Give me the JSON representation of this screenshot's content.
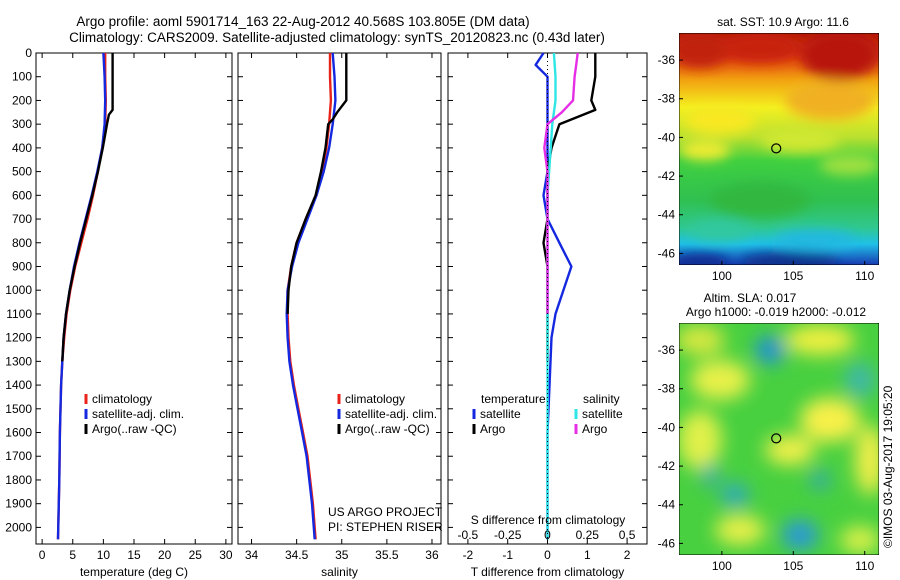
{
  "title_line1": "Argo profile: aoml 5901714_163 22-Aug-2012 40.568S 103.805E (DM data)",
  "title_line2": "Climatology: CARS2009. Satellite-adjusted climatology: synTS_20120823.nc (0.43d later)",
  "colors": {
    "climatology": "#e8231a",
    "satellite": "#1428e0",
    "argo": "#000000",
    "satellite_salinity": "#2ee6e6",
    "argo_salinity": "#e62ee6"
  },
  "chart_data": [
    {
      "type": "line",
      "name": "temperature",
      "xlabel": "temperature (deg C)",
      "ylabel": "",
      "xlim": [
        -1,
        31
      ],
      "ylim": [
        2070,
        0
      ],
      "xticks": [
        "0",
        "5",
        "10",
        "15",
        "20",
        "25",
        "30"
      ],
      "xtick_values": [
        0,
        5,
        10,
        15,
        20,
        25,
        30
      ],
      "yticks": [
        "0",
        "100",
        "200",
        "300",
        "400",
        "500",
        "600",
        "700",
        "800",
        "900",
        "1000",
        "1100",
        "1200",
        "1300",
        "1400",
        "1500",
        "1600",
        "1700",
        "1800",
        "1900",
        "2000"
      ],
      "ytick_values": [
        0,
        100,
        200,
        300,
        400,
        500,
        600,
        700,
        800,
        900,
        1000,
        1100,
        1200,
        1300,
        1400,
        1500,
        1600,
        1700,
        1800,
        1900,
        2000
      ],
      "legend": [
        "climatology",
        "satellite-adj. clim.",
        "Argo(..raw -QC)"
      ],
      "legend_placement": "center-right",
      "series": [
        {
          "name": "climatology",
          "color": "#e8231a",
          "depth": [
            0,
            100,
            200,
            300,
            400,
            500,
            600,
            700,
            800,
            900,
            1000,
            1100,
            1200,
            1300,
            1400,
            1600,
            1800,
            2050
          ],
          "values": [
            10.3,
            10.3,
            10.4,
            10.3,
            9.8,
            9.1,
            8.3,
            7.4,
            6.4,
            5.4,
            4.6,
            4.0,
            3.6,
            3.3,
            3.1,
            2.9,
            2.8,
            2.6
          ]
        },
        {
          "name": "satellite-adj. clim.",
          "color": "#1428e0",
          "depth": [
            0,
            100,
            200,
            300,
            400,
            500,
            600,
            700,
            800,
            900,
            1000,
            1100,
            1200,
            1300,
            1400,
            1600,
            1800,
            2050
          ],
          "values": [
            10.0,
            10.2,
            10.3,
            10.2,
            9.8,
            9.0,
            8.1,
            7.1,
            6.1,
            5.2,
            4.5,
            3.9,
            3.5,
            3.3,
            3.1,
            2.9,
            2.8,
            2.6
          ]
        },
        {
          "name": "Argo(..raw -QC)",
          "color": "#000000",
          "depth": [
            0,
            100,
            200,
            240,
            260,
            300,
            400,
            500,
            600,
            700,
            800,
            900,
            1000,
            1100,
            1200,
            1300
          ],
          "values": [
            11.5,
            11.5,
            11.5,
            11.5,
            10.9,
            10.6,
            9.9,
            9.1,
            8.2,
            7.2,
            6.2,
            5.3,
            4.5,
            3.9,
            3.5,
            3.3
          ]
        }
      ]
    },
    {
      "type": "line",
      "name": "salinity",
      "xlabel": "salinity",
      "ylabel": "",
      "xlim": [
        33.85,
        36.1
      ],
      "ylim": [
        2070,
        0
      ],
      "xticks": [
        "34",
        "34.5",
        "35",
        "35.5",
        "36"
      ],
      "xtick_values": [
        34,
        34.5,
        35,
        35.5,
        36
      ],
      "legend": [
        "climatology",
        "satellite-adj. clim.",
        "Argo(..raw -QC)"
      ],
      "legend_placement": "center-right",
      "annotation": [
        "US ARGO PROJECT",
        "PI: STEPHEN RISER"
      ],
      "series": [
        {
          "name": "climatology",
          "color": "#e8231a",
          "depth": [
            0,
            100,
            200,
            300,
            400,
            500,
            600,
            700,
            800,
            900,
            1000,
            1100,
            1200,
            1300,
            1400,
            1500,
            1600,
            1700,
            1800,
            1900,
            2050
          ],
          "values": [
            34.87,
            34.87,
            34.88,
            34.86,
            34.83,
            34.78,
            34.72,
            34.6,
            34.5,
            34.44,
            34.4,
            34.4,
            34.41,
            34.43,
            34.47,
            34.52,
            34.57,
            34.62,
            34.65,
            34.68,
            34.71
          ]
        },
        {
          "name": "satellite-adj. clim.",
          "color": "#1428e0",
          "depth": [
            0,
            100,
            200,
            300,
            400,
            500,
            600,
            700,
            800,
            900,
            1000,
            1100,
            1200,
            1300,
            1400,
            1500,
            1600,
            1700,
            1800,
            1900,
            2050
          ],
          "values": [
            34.9,
            34.92,
            34.93,
            34.9,
            34.86,
            34.8,
            34.72,
            34.62,
            34.52,
            34.45,
            34.4,
            34.39,
            34.4,
            34.42,
            34.46,
            34.51,
            34.56,
            34.61,
            34.64,
            34.67,
            34.7
          ]
        },
        {
          "name": "Argo(..raw -QC)",
          "color": "#000000",
          "depth": [
            0,
            100,
            200,
            250,
            280,
            300,
            400,
            500,
            600,
            700,
            800,
            900,
            1000,
            1100
          ],
          "values": [
            35.05,
            35.05,
            35.05,
            34.95,
            34.9,
            34.85,
            34.82,
            34.77,
            34.71,
            34.6,
            34.5,
            34.44,
            34.41,
            34.4
          ]
        }
      ]
    },
    {
      "type": "line",
      "name": "difference",
      "xlabel": "T difference from climatology",
      "xlabel2": "S difference from climatology",
      "xlim": [
        -2.5,
        2.5
      ],
      "ylim": [
        2070,
        0
      ],
      "xticks": [
        "-2",
        "-1",
        "0",
        "1",
        "2"
      ],
      "xtick_values": [
        -2,
        -1,
        0,
        1,
        2
      ],
      "xticks2": [
        "-0.5",
        "-0.25",
        "0",
        "0.25",
        "0.5"
      ],
      "legend_title_t": "temperature",
      "legend_title_s": "salinity",
      "legend": [
        "satellite",
        "Argo",
        "satellite",
        "Argo"
      ],
      "legend_placement": "center",
      "series": [
        {
          "name": "satellite",
          "quantity": "temperature",
          "color": "#1428e0",
          "depth": [
            0,
            50,
            100,
            200,
            300,
            400,
            500,
            600,
            700,
            800,
            900,
            1000,
            1100,
            1200,
            1400,
            1600,
            1800,
            2050
          ],
          "values": [
            -0.1,
            -0.3,
            0.0,
            0.0,
            0.0,
            0.0,
            0.0,
            -0.1,
            0.0,
            0.3,
            0.6,
            0.4,
            0.2,
            0.1,
            0.05,
            0.0,
            0.0,
            0.0
          ]
        },
        {
          "name": "Argo",
          "quantity": "temperature",
          "color": "#000000",
          "depth": [
            0,
            100,
            200,
            240,
            300,
            400,
            500,
            600,
            700,
            800,
            900,
            1000,
            1100,
            1200,
            1300
          ],
          "values": [
            1.2,
            1.2,
            1.1,
            1.2,
            0.3,
            0.1,
            0.0,
            0.0,
            0.0,
            -0.1,
            0.0,
            0.0,
            0.0,
            0.0,
            0.0
          ]
        },
        {
          "name": "satellite",
          "quantity": "salinity",
          "color": "#2ee6e6",
          "depth": [
            0,
            100,
            200,
            300,
            400,
            500,
            600,
            700,
            800,
            900,
            1000,
            1100,
            1200,
            1400,
            1600,
            1800,
            2050
          ],
          "values": [
            0.04,
            0.05,
            0.05,
            0.03,
            0.02,
            0.01,
            0.0,
            0.0,
            0.0,
            0.0,
            0.0,
            0.0,
            0.0,
            0.0,
            0.0,
            0.0,
            0.0
          ]
        },
        {
          "name": "Argo",
          "quantity": "salinity",
          "color": "#e62ee6",
          "depth": [
            0,
            50,
            100,
            200,
            250,
            300,
            400,
            500,
            600,
            700,
            800,
            900,
            1000,
            1100
          ],
          "values": [
            0.19,
            0.18,
            0.17,
            0.16,
            0.09,
            0.0,
            -0.02,
            0.0,
            0.0,
            0.0,
            0.0,
            0.0,
            0.0,
            0.0
          ]
        }
      ]
    },
    {
      "type": "heatmap",
      "name": "sst-map",
      "title": "sat. SST: 10.9 Argo: 11.6",
      "xlim": [
        97,
        111
      ],
      "ylim": [
        -46.6,
        -34.6
      ],
      "xticks": [
        "100",
        "105",
        "110"
      ],
      "xtick_values": [
        100,
        105,
        110
      ],
      "yticks": [
        "-36",
        "-38",
        "-40",
        "-42",
        "-44",
        "-46"
      ],
      "ytick_values": [
        -36,
        -38,
        -40,
        -42,
        -44,
        -46
      ],
      "marker": {
        "lon": 103.805,
        "lat": -40.568
      }
    },
    {
      "type": "heatmap",
      "name": "sla-map",
      "title_line1": "Altim. SLA: 0.017",
      "title_line2": "Argo h1000: -0.019 h2000: -0.012",
      "xlim": [
        97,
        111
      ],
      "ylim": [
        -46.6,
        -34.6
      ],
      "xticks": [
        "100",
        "105",
        "110"
      ],
      "xtick_values": [
        100,
        105,
        110
      ],
      "yticks": [
        "-36",
        "-38",
        "-40",
        "-42",
        "-44",
        "-46"
      ],
      "ytick_values": [
        -36,
        -38,
        -40,
        -42,
        -44,
        -46
      ],
      "marker": {
        "lon": 103.805,
        "lat": -40.568
      }
    }
  ],
  "footer_stamp": "©IMOS 03-Aug-2017 19:05:20"
}
